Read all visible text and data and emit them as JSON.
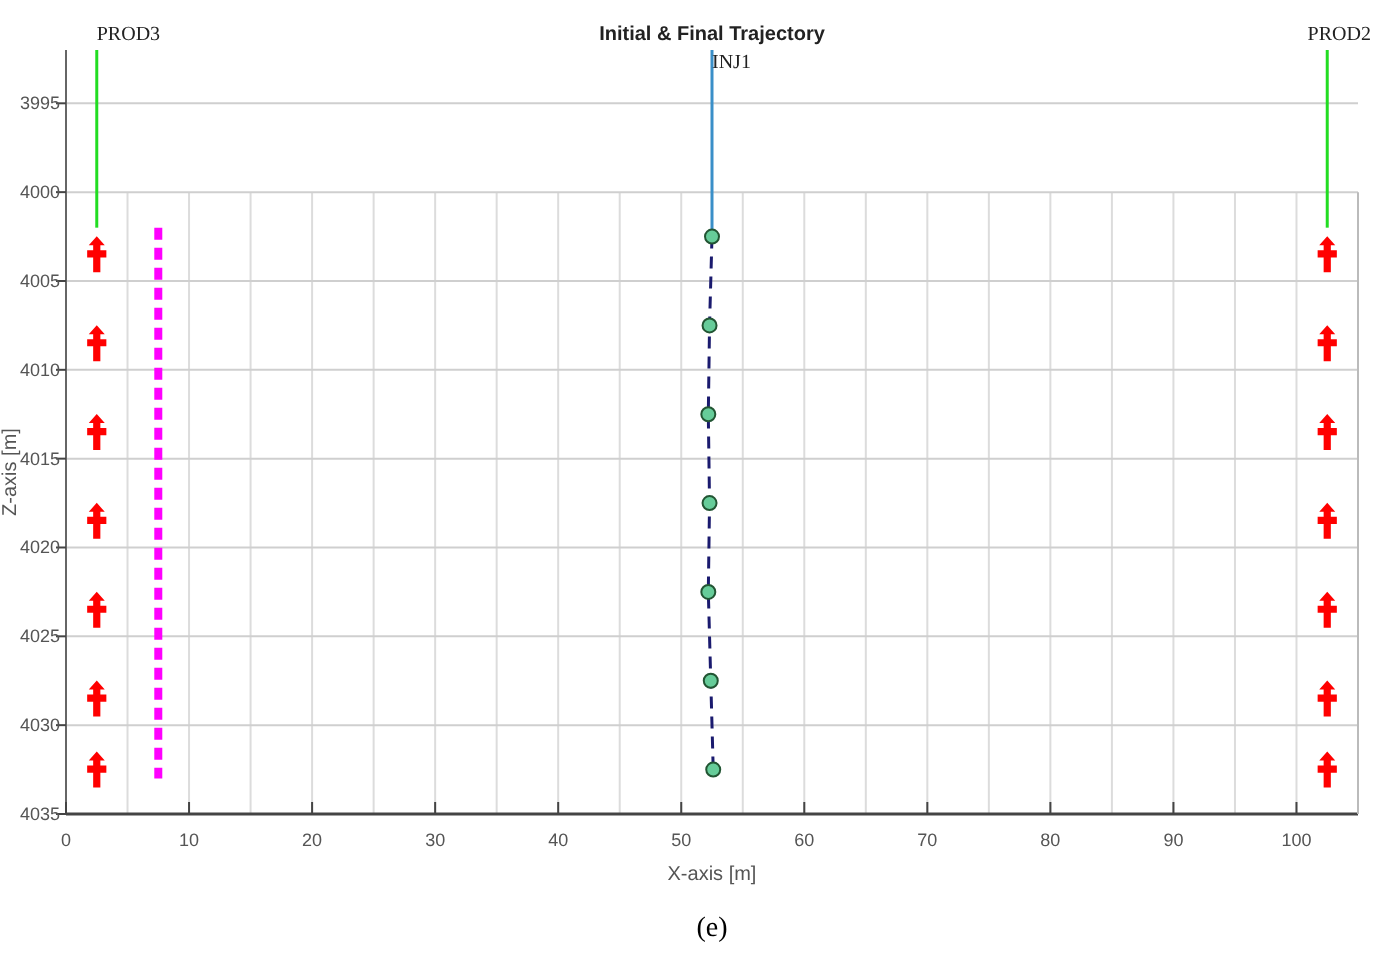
{
  "chart_data": {
    "type": "line",
    "title": "Initial & Final Trajectory",
    "xlabel": "X-axis [m]",
    "ylabel": "Z-axis [m]",
    "annotations": [
      "(e)"
    ],
    "xlim": [
      0,
      105
    ],
    "ylim": [
      4035,
      3992
    ],
    "xticks": [
      0,
      {
        "value": 5,
        "label": null
      },
      10,
      {
        "value": 15,
        "label": null
      },
      20,
      {
        "value": 25,
        "label": null
      },
      30,
      {
        "value": 35,
        "label": null
      },
      40,
      {
        "value": 45,
        "label": null
      },
      50,
      {
        "value": 55,
        "label": null
      },
      60,
      {
        "value": 65,
        "label": null
      },
      70,
      {
        "value": 75,
        "label": null
      },
      80,
      {
        "value": 85,
        "label": null
      },
      90,
      {
        "value": 95,
        "label": null
      },
      100
    ],
    "yticks": [
      3995,
      4000,
      4005,
      4010,
      4015,
      4020,
      4025,
      4030,
      4035
    ],
    "grid": true,
    "legend": false,
    "series": [
      {
        "name": "PROD3",
        "color": "#22dd22",
        "x": [
          2.5,
          2.5
        ],
        "values": [
          3992,
          4002
        ],
        "marker": "none",
        "line_style": "solid"
      },
      {
        "type": "scatter",
        "color": "#ff0000",
        "x": [
          2.5,
          2.5,
          2.5,
          2.5,
          2.5,
          2.5,
          2.5
        ],
        "values": [
          4003.5,
          4008.5,
          4013.5,
          4018.5,
          4023.5,
          4028.5,
          4032.5
        ],
        "marker": "cross"
      },
      {
        "color": "#ff00ff",
        "x": [
          7.5,
          7.5
        ],
        "values": [
          4002,
          4033
        ],
        "marker": "none",
        "line_style": "dashed"
      },
      {
        "name": "INJ1",
        "color": "#3a8fc8",
        "x": [
          52.5,
          52.5
        ],
        "values": [
          3992,
          4002.5
        ],
        "marker": "none",
        "line_style": "solid"
      },
      {
        "color": "#1a1a6e",
        "x": [
          52.5,
          52.3,
          52.2,
          52.3,
          52.2,
          52.4,
          52.6
        ],
        "values": [
          4002.5,
          4007.5,
          4012.5,
          4017.5,
          4022.5,
          4027.5,
          4032.5
        ],
        "marker": "none",
        "line_style": "dashed"
      },
      {
        "type": "scatter",
        "color": "#66cc99",
        "x": [
          52.5,
          52.3,
          52.2,
          52.3,
          52.2,
          52.4,
          52.6
        ],
        "values": [
          4002.5,
          4007.5,
          4012.5,
          4017.5,
          4022.5,
          4027.5,
          4032.5
        ],
        "marker": "circle"
      },
      {
        "name": "PROD2",
        "color": "#22dd22",
        "x": [
          102.5,
          102.5
        ],
        "values": [
          3992,
          4002
        ],
        "marker": "none",
        "line_style": "solid"
      },
      {
        "type": "scatter",
        "color": "#ff0000",
        "x": [
          102.5,
          102.5,
          102.5,
          102.5,
          102.5,
          102.5,
          102.5
        ],
        "values": [
          4003.5,
          4008.5,
          4013.5,
          4018.5,
          4023.5,
          4028.5,
          4032.5
        ],
        "marker": "cross"
      }
    ]
  }
}
